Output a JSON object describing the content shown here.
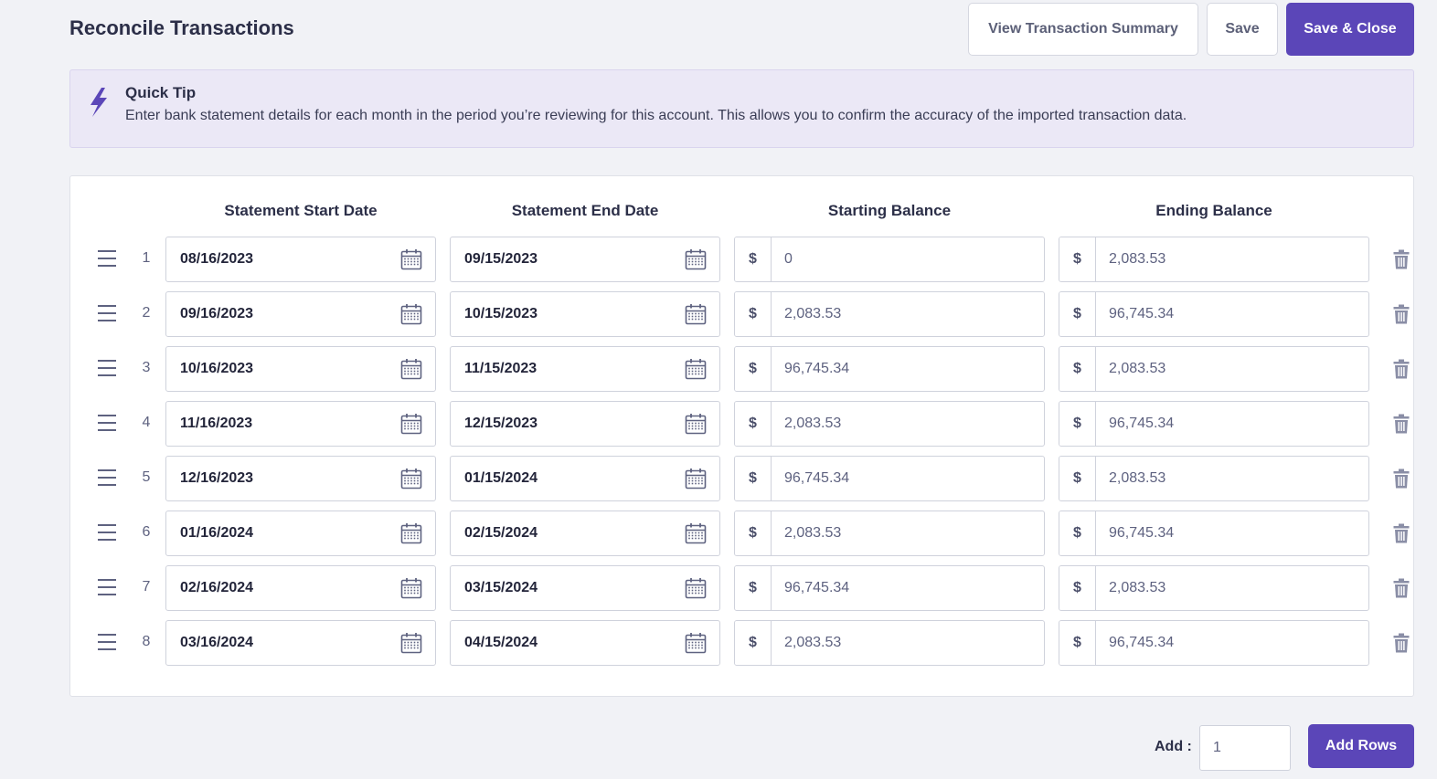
{
  "header": {
    "title": "Reconcile Transactions",
    "view_summary_label": "View Transaction Summary",
    "save_label": "Save",
    "save_close_label": "Save & Close"
  },
  "tip": {
    "title": "Quick Tip",
    "text": "Enter bank statement details for each month in the period you’re reviewing for this account. This allows you to confirm the accuracy of the imported transaction data.",
    "icon": "lightning-icon"
  },
  "table": {
    "columns": [
      "Statement Start Date",
      "Statement End Date",
      "Starting Balance",
      "Ending Balance"
    ],
    "currency_symbol": "$",
    "rows": [
      {
        "num": "1",
        "start": "08/16/2023",
        "end": "09/15/2023",
        "starting": "0",
        "ending": "2,083.53"
      },
      {
        "num": "2",
        "start": "09/16/2023",
        "end": "10/15/2023",
        "starting": "2,083.53",
        "ending": "96,745.34"
      },
      {
        "num": "3",
        "start": "10/16/2023",
        "end": "11/15/2023",
        "starting": "96,745.34",
        "ending": "2,083.53"
      },
      {
        "num": "4",
        "start": "11/16/2023",
        "end": "12/15/2023",
        "starting": "2,083.53",
        "ending": "96,745.34"
      },
      {
        "num": "5",
        "start": "12/16/2023",
        "end": "01/15/2024",
        "starting": "96,745.34",
        "ending": "2,083.53"
      },
      {
        "num": "6",
        "start": "01/16/2024",
        "end": "02/15/2024",
        "starting": "2,083.53",
        "ending": "96,745.34"
      },
      {
        "num": "7",
        "start": "02/16/2024",
        "end": "03/15/2024",
        "starting": "96,745.34",
        "ending": "2,083.53"
      },
      {
        "num": "8",
        "start": "03/16/2024",
        "end": "04/15/2024",
        "starting": "2,083.53",
        "ending": "96,745.34"
      }
    ]
  },
  "footer": {
    "add_label": "Add :",
    "add_value": "1",
    "add_rows_label": "Add Rows"
  },
  "colors": {
    "primary": "#5b46b8",
    "tip_background": "#ebe8f6",
    "page_background": "#f1f2f6"
  }
}
